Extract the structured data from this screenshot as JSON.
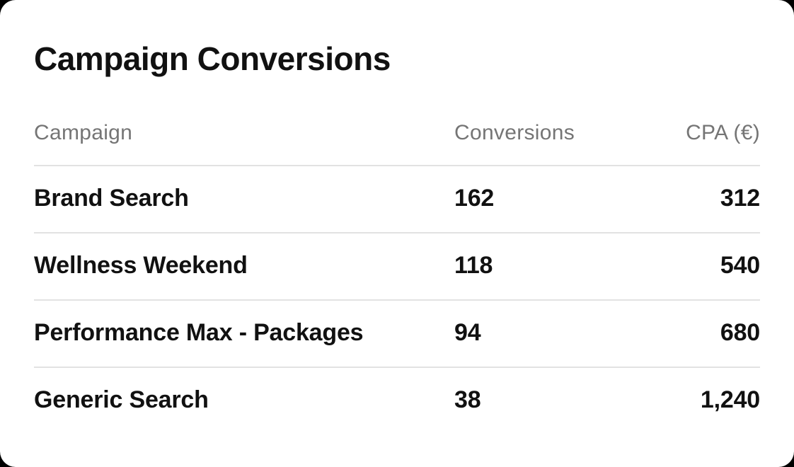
{
  "page": {
    "background_color": "#000000",
    "card_background_color": "#ffffff",
    "divider_color": "#e2e2e2",
    "header_text_color": "#757575",
    "body_text_color": "#111111"
  },
  "title": "Campaign Conversions",
  "table": {
    "columns": [
      {
        "label": "Campaign",
        "align": "left"
      },
      {
        "label": "Conversions",
        "align": "left"
      },
      {
        "label": "CPA (€)",
        "align": "right"
      }
    ],
    "rows": [
      {
        "campaign": "Brand Search",
        "conversions": "162",
        "cpa": "312"
      },
      {
        "campaign": "Wellness Weekend",
        "conversions": "118",
        "cpa": "540"
      },
      {
        "campaign": "Performance Max - Packages",
        "conversions": "94",
        "cpa": "680"
      },
      {
        "campaign": "Generic Search",
        "conversions": "38",
        "cpa": "1,240"
      }
    ]
  },
  "chart_data": {
    "type": "table",
    "title": "Campaign Conversions",
    "columns": [
      "Campaign",
      "Conversions",
      "CPA (€)"
    ],
    "rows": [
      [
        "Brand Search",
        162,
        312
      ],
      [
        "Wellness Weekend",
        118,
        540
      ],
      [
        "Performance Max - Packages",
        94,
        680
      ],
      [
        "Generic Search",
        38,
        1240
      ]
    ]
  }
}
